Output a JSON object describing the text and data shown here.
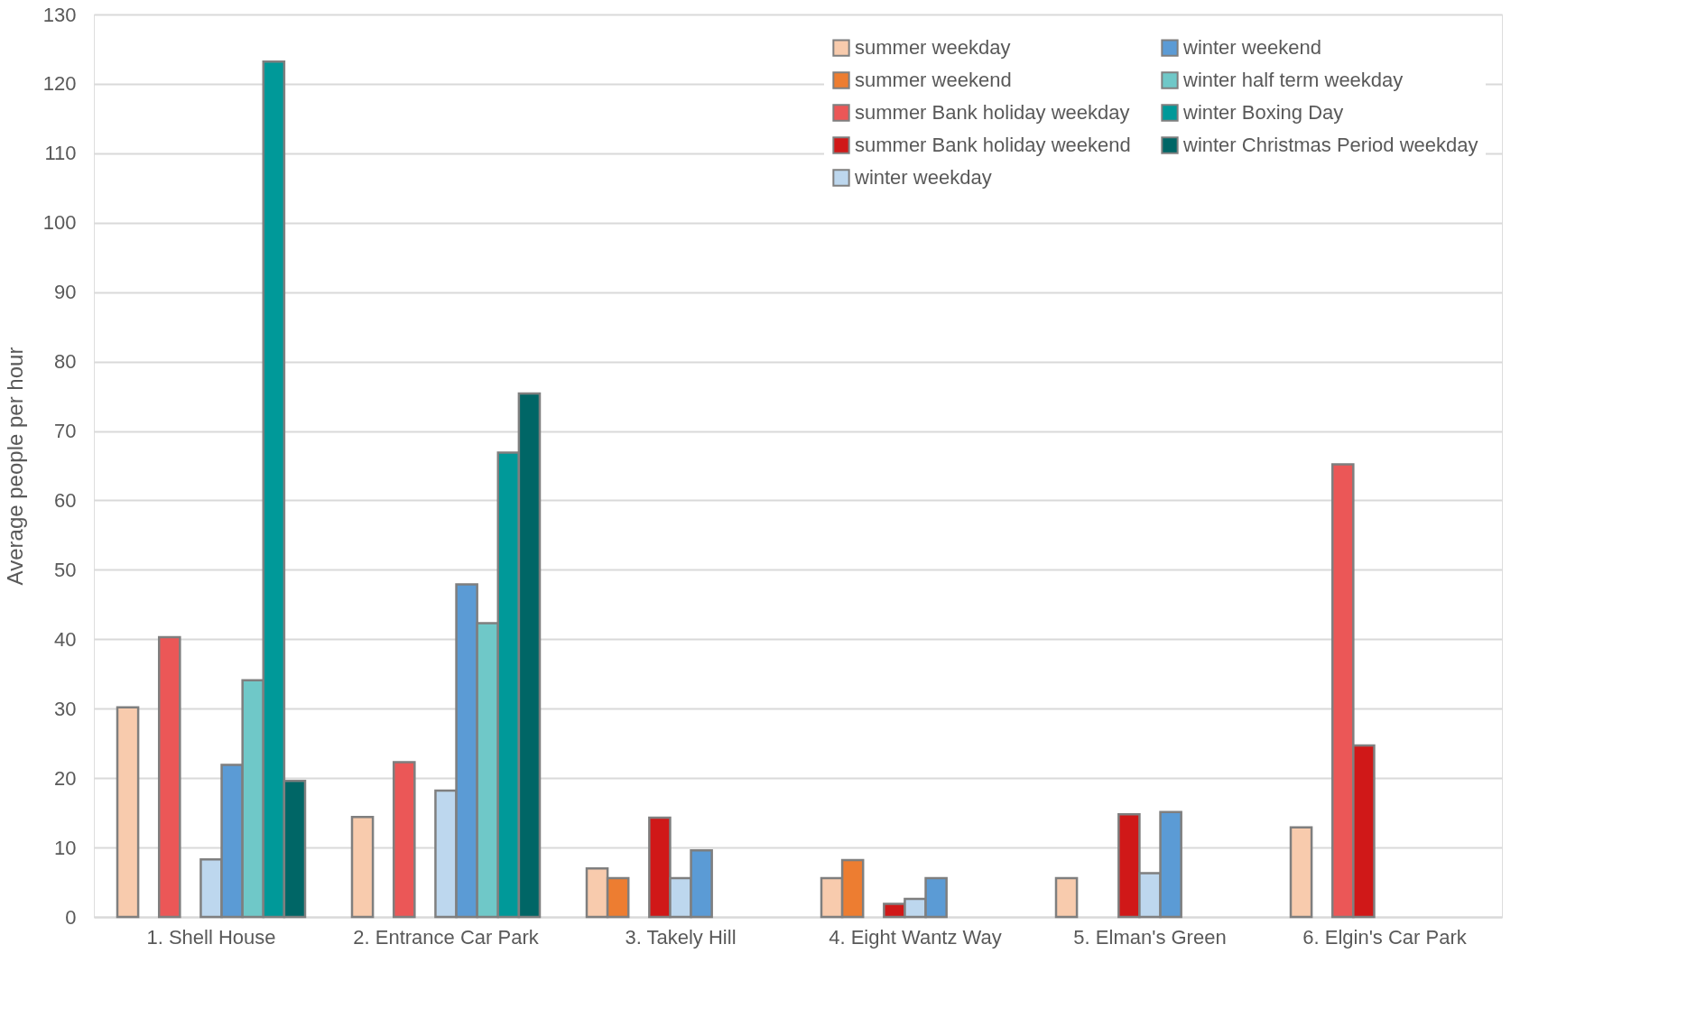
{
  "chart_data": {
    "type": "bar",
    "ylabel": "Average people per hour",
    "categories": [
      "1. Shell House",
      "2. Entrance Car Park",
      "3. Takely Hill",
      "4. Eight Wantz Way",
      "5. Elman's Green",
      "6. Elgin's Car Park"
    ],
    "series": [
      {
        "name": "summer weekday",
        "color": "#f8cbad",
        "values": [
          30.2,
          14.4,
          7.0,
          5.6,
          5.6,
          12.9
        ]
      },
      {
        "name": "summer weekend",
        "color": "#ed7d31",
        "values": [
          null,
          null,
          5.6,
          8.2,
          null,
          null
        ]
      },
      {
        "name": "summer Bank holiday weekday",
        "color": "#eb5757",
        "values": [
          40.3,
          22.3,
          null,
          null,
          null,
          65.2
        ]
      },
      {
        "name": "summer Bank holiday weekend",
        "color": "#d01818",
        "values": [
          null,
          null,
          14.3,
          1.9,
          14.8,
          24.7
        ]
      },
      {
        "name": "winter weekday",
        "color": "#bdd7ee",
        "values": [
          8.3,
          18.2,
          5.6,
          2.6,
          6.3,
          null
        ]
      },
      {
        "name": "winter weekend",
        "color": "#5b9bd5",
        "values": [
          21.9,
          47.9,
          9.6,
          5.6,
          15.1,
          null
        ]
      },
      {
        "name": "winter half term weekday",
        "color": "#6fc8c8",
        "values": [
          34.1,
          42.3,
          null,
          null,
          null,
          null
        ]
      },
      {
        "name": "winter Boxing Day",
        "color": "#009999",
        "values": [
          123.2,
          66.9,
          null,
          null,
          null,
          null
        ]
      },
      {
        "name": "winter Christmas Period weekday",
        "color": "#006666",
        "values": [
          19.6,
          75.4,
          null,
          null,
          null,
          null
        ]
      }
    ],
    "ylim": [
      0,
      130
    ],
    "yticks": [
      0,
      10,
      20,
      30,
      40,
      50,
      60,
      70,
      80,
      90,
      100,
      110,
      120,
      130
    ],
    "grid": "y",
    "legend": "top right"
  }
}
